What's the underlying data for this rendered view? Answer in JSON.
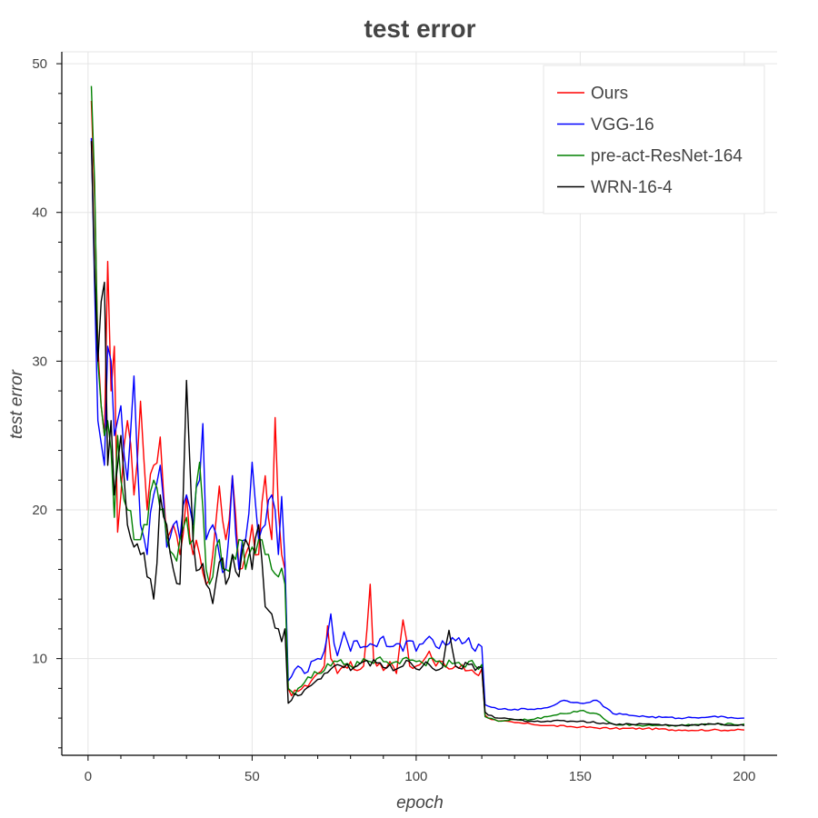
{
  "chart_data": {
    "type": "line",
    "title": "test error",
    "xlabel": "epoch",
    "ylabel": "test error",
    "xlim": [
      -8,
      210
    ],
    "ylim": [
      3.5,
      50.8
    ],
    "xticks": [
      0,
      50,
      100,
      150,
      200
    ],
    "yticks": [
      10,
      20,
      30,
      40,
      50
    ],
    "grid": true,
    "legend_position": "top-right",
    "series": [
      {
        "name": "Ours",
        "color": "#ff0000",
        "keypoints": [
          [
            1,
            47.5
          ],
          [
            2,
            41
          ],
          [
            3,
            31
          ],
          [
            4,
            27
          ],
          [
            5,
            25
          ],
          [
            6,
            36.7
          ],
          [
            7,
            28
          ],
          [
            8,
            31
          ],
          [
            9,
            18.5
          ],
          [
            10,
            21
          ],
          [
            12,
            26
          ],
          [
            14,
            21
          ],
          [
            16,
            27.3
          ],
          [
            18,
            20
          ],
          [
            20,
            23
          ],
          [
            22,
            24.9
          ],
          [
            24,
            18
          ],
          [
            26,
            19
          ],
          [
            28,
            17
          ],
          [
            30,
            21
          ],
          [
            32,
            17
          ],
          [
            34,
            17
          ],
          [
            36,
            15
          ],
          [
            38,
            17
          ],
          [
            40,
            21.6
          ],
          [
            42,
            18
          ],
          [
            44,
            22.3
          ],
          [
            46,
            16
          ],
          [
            48,
            17
          ],
          [
            50,
            19
          ],
          [
            52,
            17
          ],
          [
            54,
            22.3
          ],
          [
            56,
            18
          ],
          [
            57,
            26.2
          ],
          [
            58,
            20
          ],
          [
            59,
            17
          ],
          [
            60,
            16
          ],
          [
            61,
            8
          ],
          [
            62,
            7.5
          ],
          [
            64,
            7.8
          ],
          [
            66,
            8.2
          ],
          [
            68,
            8.5
          ],
          [
            70,
            9
          ],
          [
            72,
            9.5
          ],
          [
            73,
            12.2
          ],
          [
            74,
            10
          ],
          [
            76,
            9
          ],
          [
            78,
            9.5
          ],
          [
            80,
            9.8
          ],
          [
            82,
            9.2
          ],
          [
            84,
            9.5
          ],
          [
            86,
            15
          ],
          [
            87,
            10
          ],
          [
            88,
            9.5
          ],
          [
            90,
            9.2
          ],
          [
            92,
            9.8
          ],
          [
            94,
            9
          ],
          [
            96,
            12.6
          ],
          [
            98,
            9.5
          ],
          [
            100,
            9.5
          ],
          [
            102,
            9.8
          ],
          [
            104,
            10.5
          ],
          [
            106,
            9.5
          ],
          [
            108,
            9.8
          ],
          [
            110,
            9.3
          ],
          [
            112,
            9.5
          ],
          [
            114,
            9.6
          ],
          [
            116,
            9.2
          ],
          [
            118,
            9
          ],
          [
            120,
            9.3
          ],
          [
            121,
            6.2
          ],
          [
            122,
            6
          ],
          [
            125,
            5.8
          ],
          [
            130,
            5.7
          ],
          [
            135,
            5.6
          ],
          [
            140,
            5.5
          ],
          [
            150,
            5.4
          ],
          [
            160,
            5.3
          ],
          [
            170,
            5.3
          ],
          [
            180,
            5.2
          ],
          [
            190,
            5.2
          ],
          [
            200,
            5.2
          ]
        ]
      },
      {
        "name": "VGG-16",
        "color": "#0000ff",
        "keypoints": [
          [
            1,
            45
          ],
          [
            2,
            35
          ],
          [
            3,
            26
          ],
          [
            4,
            24.5
          ],
          [
            5,
            23
          ],
          [
            6,
            31
          ],
          [
            7,
            30
          ],
          [
            8,
            25
          ],
          [
            9,
            26
          ],
          [
            10,
            27
          ],
          [
            12,
            22
          ],
          [
            14,
            29
          ],
          [
            16,
            19
          ],
          [
            18,
            17
          ],
          [
            20,
            21
          ],
          [
            22,
            23
          ],
          [
            24,
            17.5
          ],
          [
            26,
            19
          ],
          [
            28,
            18
          ],
          [
            30,
            21
          ],
          [
            32,
            19
          ],
          [
            34,
            22
          ],
          [
            35,
            25.8
          ],
          [
            36,
            18
          ],
          [
            38,
            19
          ],
          [
            40,
            17
          ],
          [
            42,
            16
          ],
          [
            44,
            22.3
          ],
          [
            46,
            16
          ],
          [
            48,
            18
          ],
          [
            50,
            23.2
          ],
          [
            52,
            18
          ],
          [
            54,
            19
          ],
          [
            56,
            21
          ],
          [
            58,
            17
          ],
          [
            59,
            20.9
          ],
          [
            60,
            16.5
          ],
          [
            61,
            8.5
          ],
          [
            62,
            8.8
          ],
          [
            64,
            9.5
          ],
          [
            66,
            9
          ],
          [
            68,
            9.8
          ],
          [
            70,
            10
          ],
          [
            72,
            10.5
          ],
          [
            74,
            13
          ],
          [
            75,
            11
          ],
          [
            76,
            10.2
          ],
          [
            78,
            11.8
          ],
          [
            80,
            10.5
          ],
          [
            82,
            11.2
          ],
          [
            84,
            10.8
          ],
          [
            86,
            11
          ],
          [
            88,
            10.8
          ],
          [
            90,
            11.5
          ],
          [
            92,
            10.8
          ],
          [
            94,
            11
          ],
          [
            96,
            10.5
          ],
          [
            98,
            11.2
          ],
          [
            100,
            10.5
          ],
          [
            102,
            11
          ],
          [
            104,
            11.5
          ],
          [
            106,
            10.8
          ],
          [
            108,
            11.2
          ],
          [
            110,
            11
          ],
          [
            112,
            11.2
          ],
          [
            114,
            11
          ],
          [
            116,
            11.4
          ],
          [
            118,
            10.5
          ],
          [
            120,
            10.8
          ],
          [
            121,
            6.9
          ],
          [
            122,
            6.8
          ],
          [
            125,
            6.6
          ],
          [
            130,
            6.6
          ],
          [
            135,
            6.6
          ],
          [
            140,
            6.7
          ],
          [
            145,
            7.2
          ],
          [
            150,
            7
          ],
          [
            155,
            7.2
          ],
          [
            160,
            6.3
          ],
          [
            170,
            6.1
          ],
          [
            180,
            6.0
          ],
          [
            190,
            6.1
          ],
          [
            200,
            6.0
          ]
        ]
      },
      {
        "name": "pre-act-ResNet-164",
        "color": "#008000",
        "keypoints": [
          [
            1,
            48.5
          ],
          [
            2,
            42
          ],
          [
            3,
            30
          ],
          [
            4,
            27
          ],
          [
            5,
            25
          ],
          [
            6,
            26
          ],
          [
            7,
            24
          ],
          [
            8,
            19.5
          ],
          [
            9,
            25
          ],
          [
            10,
            22
          ],
          [
            12,
            20
          ],
          [
            14,
            18
          ],
          [
            16,
            18
          ],
          [
            18,
            19
          ],
          [
            20,
            22
          ],
          [
            22,
            20
          ],
          [
            24,
            18
          ],
          [
            26,
            17
          ],
          [
            28,
            18
          ],
          [
            30,
            19.5
          ],
          [
            32,
            18
          ],
          [
            34,
            23.2
          ],
          [
            36,
            16
          ],
          [
            38,
            15.5
          ],
          [
            40,
            18
          ],
          [
            42,
            16
          ],
          [
            44,
            17
          ],
          [
            46,
            18
          ],
          [
            48,
            16
          ],
          [
            50,
            17.5
          ],
          [
            52,
            18
          ],
          [
            54,
            17
          ],
          [
            56,
            16
          ],
          [
            58,
            15.5
          ],
          [
            60,
            15
          ],
          [
            61,
            8
          ],
          [
            62,
            7.8
          ],
          [
            64,
            8
          ],
          [
            66,
            8.4
          ],
          [
            68,
            8.7
          ],
          [
            70,
            9
          ],
          [
            72,
            9.2
          ],
          [
            74,
            9.5
          ],
          [
            76,
            9.8
          ],
          [
            78,
            9.6
          ],
          [
            80,
            9.5
          ],
          [
            82,
            9.8
          ],
          [
            84,
            10
          ],
          [
            86,
            9.8
          ],
          [
            88,
            10
          ],
          [
            90,
            9.8
          ],
          [
            92,
            9.6
          ],
          [
            94,
            9.8
          ],
          [
            96,
            10
          ],
          [
            98,
            9.9
          ],
          [
            100,
            9.8
          ],
          [
            102,
            9.7
          ],
          [
            104,
            10
          ],
          [
            106,
            9.8
          ],
          [
            108,
            9.6
          ],
          [
            110,
            9.9
          ],
          [
            112,
            9.7
          ],
          [
            114,
            9.5
          ],
          [
            116,
            9.8
          ],
          [
            118,
            9.5
          ],
          [
            120,
            9.6
          ],
          [
            121,
            6.1
          ],
          [
            122,
            6.0
          ],
          [
            125,
            5.8
          ],
          [
            130,
            5.9
          ],
          [
            135,
            5.9
          ],
          [
            140,
            6.1
          ],
          [
            145,
            6.3
          ],
          [
            150,
            6.5
          ],
          [
            155,
            6.3
          ],
          [
            160,
            5.6
          ],
          [
            170,
            5.5
          ],
          [
            180,
            5.5
          ],
          [
            190,
            5.6
          ],
          [
            200,
            5.6
          ]
        ]
      },
      {
        "name": "WRN-16-4",
        "color": "#000000",
        "keypoints": [
          [
            1,
            44.8
          ],
          [
            2,
            36
          ],
          [
            3,
            30
          ],
          [
            4,
            34
          ],
          [
            5,
            35.3
          ],
          [
            6,
            23
          ],
          [
            7,
            26
          ],
          [
            8,
            21
          ],
          [
            9,
            23
          ],
          [
            10,
            25
          ],
          [
            12,
            19
          ],
          [
            14,
            17.5
          ],
          [
            16,
            17
          ],
          [
            18,
            15.5
          ],
          [
            20,
            14
          ],
          [
            22,
            21
          ],
          [
            24,
            19
          ],
          [
            26,
            16
          ],
          [
            28,
            15
          ],
          [
            30,
            28.7
          ],
          [
            32,
            18
          ],
          [
            34,
            16
          ],
          [
            36,
            15
          ],
          [
            38,
            13.7
          ],
          [
            40,
            16.5
          ],
          [
            42,
            15
          ],
          [
            44,
            17
          ],
          [
            46,
            15.5
          ],
          [
            48,
            18
          ],
          [
            50,
            16
          ],
          [
            52,
            19
          ],
          [
            54,
            13.5
          ],
          [
            56,
            13
          ],
          [
            58,
            12
          ],
          [
            60,
            12
          ],
          [
            61,
            7
          ],
          [
            62,
            7.2
          ],
          [
            64,
            7.5
          ],
          [
            66,
            7.9
          ],
          [
            68,
            8.2
          ],
          [
            70,
            8.6
          ],
          [
            72,
            9
          ],
          [
            74,
            9.3
          ],
          [
            76,
            9.6
          ],
          [
            78,
            9.4
          ],
          [
            80,
            9.2
          ],
          [
            82,
            9.5
          ],
          [
            84,
            9.8
          ],
          [
            86,
            9.5
          ],
          [
            88,
            9.7
          ],
          [
            90,
            9.4
          ],
          [
            92,
            9.6
          ],
          [
            94,
            9.3
          ],
          [
            96,
            9.5
          ],
          [
            98,
            9.8
          ],
          [
            100,
            9.3
          ],
          [
            102,
            9.5
          ],
          [
            104,
            9.6
          ],
          [
            106,
            9.2
          ],
          [
            108,
            9.4
          ],
          [
            110,
            11.9
          ],
          [
            112,
            9.5
          ],
          [
            114,
            9.3
          ],
          [
            116,
            9.6
          ],
          [
            118,
            9.2
          ],
          [
            120,
            9.4
          ],
          [
            121,
            6.4
          ],
          [
            122,
            6.2
          ],
          [
            125,
            6.0
          ],
          [
            130,
            5.9
          ],
          [
            135,
            5.8
          ],
          [
            140,
            5.8
          ],
          [
            150,
            5.8
          ],
          [
            160,
            5.6
          ],
          [
            170,
            5.6
          ],
          [
            180,
            5.5
          ],
          [
            190,
            5.6
          ],
          [
            200,
            5.5
          ]
        ]
      }
    ]
  }
}
